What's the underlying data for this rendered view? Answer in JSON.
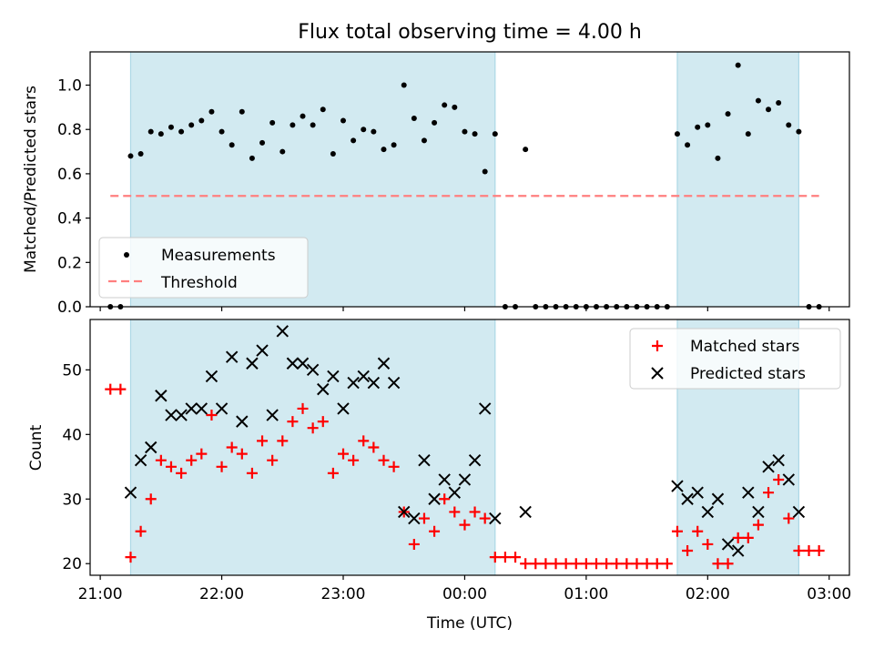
{
  "figure": {
    "title": "Flux total observing time = 4.00 h",
    "xlabel": "Time (UTC)"
  },
  "colors": {
    "band": "#add8e6",
    "measurement": "#000000",
    "threshold": "#ff7f7f",
    "matched": "#ff0000",
    "predicted": "#000000"
  },
  "chart_data": [
    {
      "type": "scatter",
      "panel": "ratio",
      "ylabel": "Matched/Predicted stars",
      "xlim": [
        "20:55",
        "03:10"
      ],
      "ylim": [
        0.0,
        1.15
      ],
      "yticks": [
        0.0,
        0.2,
        0.4,
        0.6,
        0.8,
        1.0
      ],
      "ytick_labels": [
        "0.0",
        "0.2",
        "0.4",
        "0.6",
        "0.8",
        "1.0"
      ],
      "legend_placement": "lower-left",
      "legend": [
        "Measurements",
        "Threshold"
      ],
      "shaded_intervals": [
        [
          "21:15",
          "00:15"
        ],
        [
          "01:45",
          "02:45"
        ]
      ],
      "threshold": {
        "name": "Threshold",
        "y": 0.5,
        "x_range": [
          "21:05",
          "02:55"
        ],
        "style": "dashed"
      },
      "series": [
        {
          "name": "Measurements",
          "marker": "dot",
          "points": [
            [
              "21:05",
              0.0
            ],
            [
              "21:10",
              0.0
            ],
            [
              "21:15",
              0.68
            ],
            [
              "21:20",
              0.69
            ],
            [
              "21:25",
              0.79
            ],
            [
              "21:30",
              0.78
            ],
            [
              "21:35",
              0.81
            ],
            [
              "21:40",
              0.79
            ],
            [
              "21:45",
              0.82
            ],
            [
              "21:50",
              0.84
            ],
            [
              "21:55",
              0.88
            ],
            [
              "22:00",
              0.79
            ],
            [
              "22:05",
              0.73
            ],
            [
              "22:10",
              0.88
            ],
            [
              "22:15",
              0.67
            ],
            [
              "22:20",
              0.74
            ],
            [
              "22:25",
              0.83
            ],
            [
              "22:30",
              0.7
            ],
            [
              "22:35",
              0.82
            ],
            [
              "22:40",
              0.86
            ],
            [
              "22:45",
              0.82
            ],
            [
              "22:50",
              0.89
            ],
            [
              "22:55",
              0.69
            ],
            [
              "23:00",
              0.84
            ],
            [
              "23:05",
              0.75
            ],
            [
              "23:10",
              0.8
            ],
            [
              "23:15",
              0.79
            ],
            [
              "23:20",
              0.71
            ],
            [
              "23:25",
              0.73
            ],
            [
              "23:30",
              1.0
            ],
            [
              "23:35",
              0.85
            ],
            [
              "23:40",
              0.75
            ],
            [
              "23:45",
              0.83
            ],
            [
              "23:50",
              0.91
            ],
            [
              "23:55",
              0.9
            ],
            [
              "00:00",
              0.79
            ],
            [
              "00:05",
              0.78
            ],
            [
              "00:10",
              0.61
            ],
            [
              "00:15",
              0.78
            ],
            [
              "00:20",
              0.0
            ],
            [
              "00:25",
              0.0
            ],
            [
              "00:30",
              0.71
            ],
            [
              "00:35",
              0.0
            ],
            [
              "00:40",
              0.0
            ],
            [
              "00:45",
              0.0
            ],
            [
              "00:50",
              0.0
            ],
            [
              "00:55",
              0.0
            ],
            [
              "01:00",
              0.0
            ],
            [
              "01:05",
              0.0
            ],
            [
              "01:10",
              0.0
            ],
            [
              "01:15",
              0.0
            ],
            [
              "01:20",
              0.0
            ],
            [
              "01:25",
              0.0
            ],
            [
              "01:30",
              0.0
            ],
            [
              "01:35",
              0.0
            ],
            [
              "01:40",
              0.0
            ],
            [
              "01:45",
              0.78
            ],
            [
              "01:50",
              0.73
            ],
            [
              "01:55",
              0.81
            ],
            [
              "02:00",
              0.82
            ],
            [
              "02:05",
              0.67
            ],
            [
              "02:10",
              0.87
            ],
            [
              "02:15",
              1.09
            ],
            [
              "02:20",
              0.78
            ],
            [
              "02:25",
              0.93
            ],
            [
              "02:30",
              0.89
            ],
            [
              "02:35",
              0.92
            ],
            [
              "02:40",
              0.82
            ],
            [
              "02:45",
              0.79
            ],
            [
              "02:50",
              0.0
            ],
            [
              "02:55",
              0.0
            ]
          ]
        }
      ]
    },
    {
      "type": "scatter",
      "panel": "counts",
      "ylabel": "Count",
      "xlim": [
        "20:55",
        "03:10"
      ],
      "ylim": [
        18.2,
        57.8
      ],
      "yticks": [
        20,
        30,
        40,
        50
      ],
      "ytick_labels": [
        "20",
        "30",
        "40",
        "50"
      ],
      "xticks": [
        "21:00",
        "22:00",
        "23:00",
        "00:00",
        "01:00",
        "02:00",
        "03:00"
      ],
      "xtick_labels": [
        "21:00",
        "22:00",
        "23:00",
        "00:00",
        "01:00",
        "02:00",
        "03:00"
      ],
      "legend_placement": "upper-right",
      "legend": [
        "Matched stars",
        "Predicted stars"
      ],
      "shaded_intervals": [
        [
          "21:15",
          "00:15"
        ],
        [
          "01:45",
          "02:45"
        ]
      ],
      "series": [
        {
          "name": "Matched stars",
          "marker": "plus",
          "points": [
            [
              "21:05",
              47
            ],
            [
              "21:10",
              47
            ],
            [
              "21:15",
              21
            ],
            [
              "21:20",
              25
            ],
            [
              "21:25",
              30
            ],
            [
              "21:30",
              36
            ],
            [
              "21:35",
              35
            ],
            [
              "21:40",
              34
            ],
            [
              "21:45",
              36
            ],
            [
              "21:50",
              37
            ],
            [
              "21:55",
              43
            ],
            [
              "22:00",
              35
            ],
            [
              "22:05",
              38
            ],
            [
              "22:10",
              37
            ],
            [
              "22:15",
              34
            ],
            [
              "22:20",
              39
            ],
            [
              "22:25",
              36
            ],
            [
              "22:30",
              39
            ],
            [
              "22:35",
              42
            ],
            [
              "22:40",
              44
            ],
            [
              "22:45",
              41
            ],
            [
              "22:50",
              42
            ],
            [
              "22:55",
              34
            ],
            [
              "23:00",
              37
            ],
            [
              "23:05",
              36
            ],
            [
              "23:10",
              39
            ],
            [
              "23:15",
              38
            ],
            [
              "23:20",
              36
            ],
            [
              "23:25",
              35
            ],
            [
              "23:30",
              28
            ],
            [
              "23:35",
              23
            ],
            [
              "23:40",
              27
            ],
            [
              "23:45",
              25
            ],
            [
              "23:50",
              30
            ],
            [
              "23:55",
              28
            ],
            [
              "00:00",
              26
            ],
            [
              "00:05",
              28
            ],
            [
              "00:10",
              27
            ],
            [
              "00:15",
              21
            ],
            [
              "00:20",
              21
            ],
            [
              "00:25",
              21
            ],
            [
              "00:30",
              20
            ],
            [
              "00:35",
              20
            ],
            [
              "00:40",
              20
            ],
            [
              "00:45",
              20
            ],
            [
              "00:50",
              20
            ],
            [
              "00:55",
              20
            ],
            [
              "01:00",
              20
            ],
            [
              "01:05",
              20
            ],
            [
              "01:10",
              20
            ],
            [
              "01:15",
              20
            ],
            [
              "01:20",
              20
            ],
            [
              "01:25",
              20
            ],
            [
              "01:30",
              20
            ],
            [
              "01:35",
              20
            ],
            [
              "01:40",
              20
            ],
            [
              "01:45",
              25
            ],
            [
              "01:50",
              22
            ],
            [
              "01:55",
              25
            ],
            [
              "02:00",
              23
            ],
            [
              "02:05",
              20
            ],
            [
              "02:10",
              20
            ],
            [
              "02:15",
              24
            ],
            [
              "02:20",
              24
            ],
            [
              "02:25",
              26
            ],
            [
              "02:30",
              31
            ],
            [
              "02:35",
              33
            ],
            [
              "02:40",
              27
            ],
            [
              "02:45",
              22
            ],
            [
              "02:50",
              22
            ],
            [
              "02:55",
              22
            ]
          ]
        },
        {
          "name": "Predicted stars",
          "marker": "x",
          "points": [
            [
              "21:15",
              31
            ],
            [
              "21:20",
              36
            ],
            [
              "21:25",
              38
            ],
            [
              "21:30",
              46
            ],
            [
              "21:35",
              43
            ],
            [
              "21:40",
              43
            ],
            [
              "21:45",
              44
            ],
            [
              "21:50",
              44
            ],
            [
              "21:55",
              49
            ],
            [
              "22:00",
              44
            ],
            [
              "22:05",
              52
            ],
            [
              "22:10",
              42
            ],
            [
              "22:15",
              51
            ],
            [
              "22:20",
              53
            ],
            [
              "22:25",
              43
            ],
            [
              "22:30",
              56
            ],
            [
              "22:35",
              51
            ],
            [
              "22:40",
              51
            ],
            [
              "22:45",
              50
            ],
            [
              "22:50",
              47
            ],
            [
              "22:55",
              49
            ],
            [
              "23:00",
              44
            ],
            [
              "23:05",
              48
            ],
            [
              "23:10",
              49
            ],
            [
              "23:15",
              48
            ],
            [
              "23:20",
              51
            ],
            [
              "23:25",
              48
            ],
            [
              "23:30",
              28
            ],
            [
              "23:35",
              27
            ],
            [
              "23:40",
              36
            ],
            [
              "23:45",
              30
            ],
            [
              "23:50",
              33
            ],
            [
              "23:55",
              31
            ],
            [
              "00:00",
              33
            ],
            [
              "00:05",
              36
            ],
            [
              "00:10",
              44
            ],
            [
              "00:15",
              27
            ],
            [
              "00:30",
              28
            ],
            [
              "01:45",
              32
            ],
            [
              "01:50",
              30
            ],
            [
              "01:55",
              31
            ],
            [
              "02:00",
              28
            ],
            [
              "02:05",
              30
            ],
            [
              "02:10",
              23
            ],
            [
              "02:15",
              22
            ],
            [
              "02:20",
              31
            ],
            [
              "02:25",
              28
            ],
            [
              "02:30",
              35
            ],
            [
              "02:35",
              36
            ],
            [
              "02:40",
              33
            ],
            [
              "02:45",
              28
            ]
          ]
        }
      ]
    }
  ]
}
